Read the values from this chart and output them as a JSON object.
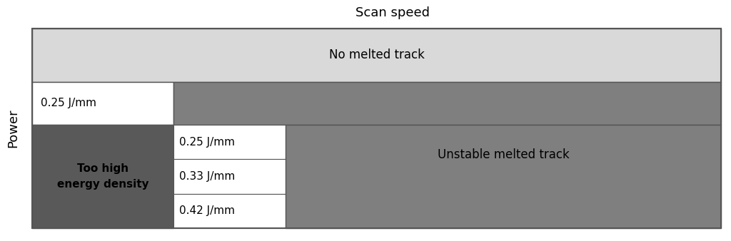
{
  "title": "Scan speed",
  "ylabel": "Power",
  "bg_color": "#ffffff",
  "light_gray": "#d9d9d9",
  "mid_gray": "#7f7f7f",
  "dark_gray": "#595959",
  "white": "#ffffff",
  "no_melted_label": "No melted track",
  "unstable_label": "Unstable melted track",
  "too_high_label": "Too high\nenergy density",
  "stable_cells": [
    "0.25 J/mm",
    "0.33 J/mm",
    "0.42 J/mm"
  ],
  "top_row_label": "0.25 J/mm",
  "border_color": "#555555",
  "title_fontsize": 13,
  "label_fontsize": 12,
  "cell_fontsize": 11,
  "ylabel_fontsize": 13
}
